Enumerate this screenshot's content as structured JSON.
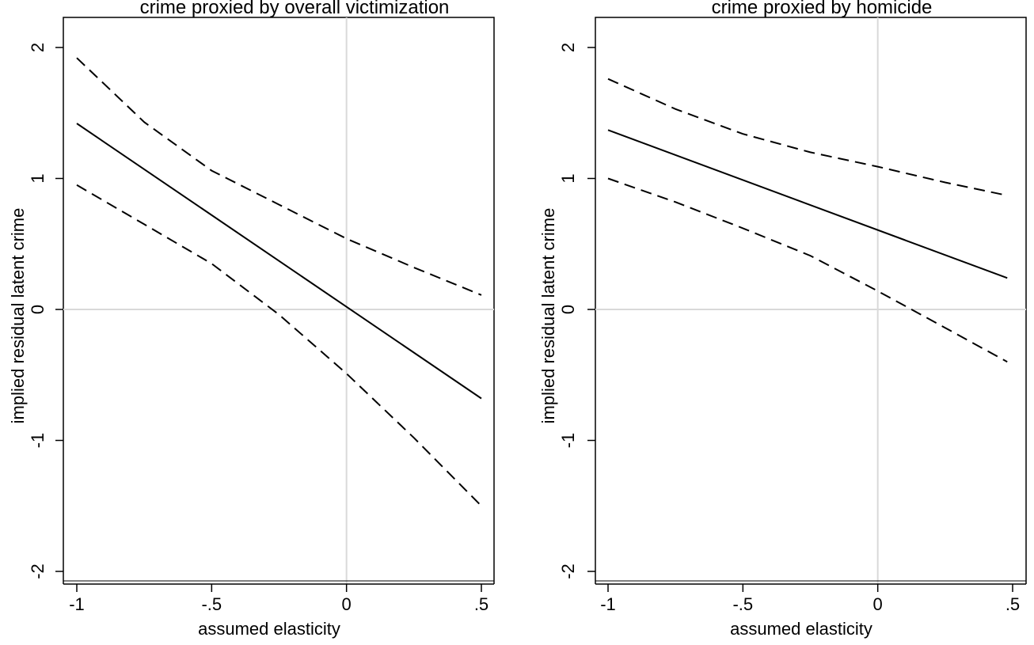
{
  "chart_data": [
    {
      "type": "line",
      "title": "crime proxied by overall victimization",
      "xlabel": "assumed elasticity",
      "ylabel": "implied residual latent crime",
      "xlim": [
        -1,
        0.5
      ],
      "ylim": [
        -2,
        2
      ],
      "x_ticks": [
        -1,
        -0.5,
        0,
        0.5
      ],
      "x_tick_labels": [
        "-1",
        "-.5",
        "0",
        ".5"
      ],
      "y_ticks": [
        -2,
        -1,
        0,
        1,
        2
      ],
      "y_tick_labels": [
        "-2",
        "-1",
        "0",
        "1",
        "2"
      ],
      "reference_lines": {
        "x": 0,
        "y": 0
      },
      "series": [
        {
          "style": "solid",
          "x": [
            -1,
            0.5
          ],
          "y": [
            1.42,
            -0.68
          ]
        },
        {
          "style": "dashed",
          "x": [
            -1,
            -0.75,
            -0.5,
            -0.25,
            0,
            0.25,
            0.5
          ],
          "y": [
            1.92,
            1.43,
            1.06,
            0.8,
            0.54,
            0.32,
            0.11
          ]
        },
        {
          "style": "dashed",
          "x": [
            -1,
            -0.75,
            -0.5,
            -0.25,
            0,
            0.25,
            0.5
          ],
          "y": [
            0.95,
            0.65,
            0.35,
            -0.04,
            -0.49,
            -0.98,
            -1.5
          ]
        }
      ]
    },
    {
      "type": "line",
      "title": "crime proxied by homicide",
      "xlabel": "assumed elasticity",
      "ylabel": "implied residual latent crime",
      "xlim": [
        -1,
        0.5
      ],
      "ylim": [
        -2,
        2
      ],
      "x_ticks": [
        -1,
        -0.5,
        0,
        0.5
      ],
      "x_tick_labels": [
        "-1",
        "-.5",
        "0",
        ".5"
      ],
      "y_ticks": [
        -2,
        -1,
        0,
        1,
        2
      ],
      "y_tick_labels": [
        "-2",
        "-1",
        "0",
        "1",
        "2"
      ],
      "reference_lines": {
        "x": 0,
        "y": 0
      },
      "series": [
        {
          "style": "solid",
          "x": [
            -1,
            0.48
          ],
          "y": [
            1.37,
            0.24
          ]
        },
        {
          "style": "dashed",
          "x": [
            -1,
            -0.75,
            -0.5,
            -0.25,
            0,
            0.25,
            0.48
          ],
          "y": [
            1.76,
            1.53,
            1.34,
            1.2,
            1.09,
            0.97,
            0.87
          ]
        },
        {
          "style": "dashed",
          "x": [
            -1,
            -0.75,
            -0.5,
            -0.25,
            0,
            0.25,
            0.48
          ],
          "y": [
            1.0,
            0.82,
            0.62,
            0.41,
            0.14,
            -0.14,
            -0.4
          ]
        }
      ]
    }
  ]
}
